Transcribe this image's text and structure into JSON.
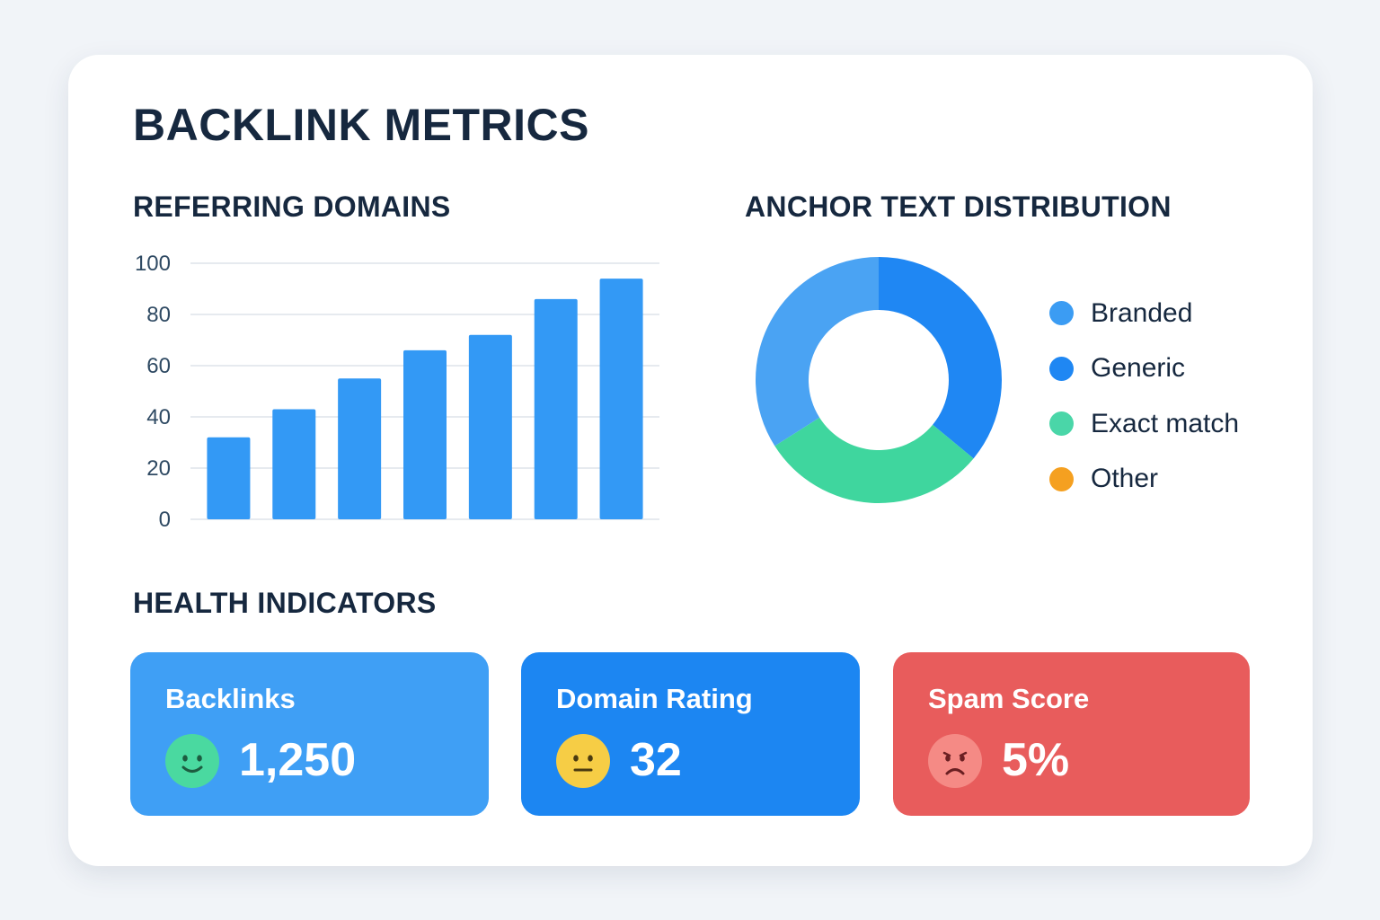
{
  "title": "BACKLINK METRICS",
  "colors": {
    "page_bg": "#f1f4f8",
    "heading": "#16283f",
    "bar": "#3399f5",
    "grid": "#dde3ea"
  },
  "referring_domains": {
    "title": "REFERRING DOMAINS",
    "chart_data": {
      "type": "bar",
      "values": [
        32,
        43,
        55,
        66,
        72,
        86,
        94
      ],
      "yticks": [
        0,
        20,
        40,
        60,
        80,
        100
      ],
      "ylim": [
        0,
        100
      ],
      "grid": true
    }
  },
  "anchor_text": {
    "title": "ANCHOR TEXT DISTRIBUTION",
    "chart_data": {
      "type": "pie",
      "donut": true,
      "slices": [
        {
          "label": "Generic",
          "value": 36,
          "color": "#1f87f3"
        },
        {
          "label": "Exact match",
          "value": 30,
          "color": "#3fd69e"
        },
        {
          "label": "Branded",
          "value": 34,
          "color": "#4aa3f3"
        },
        {
          "label": "Other",
          "value": 0,
          "color": "#f5a020"
        }
      ],
      "legend": [
        {
          "label": "Branded",
          "color": "#3b9cf3"
        },
        {
          "label": "Generic",
          "color": "#1f87f3"
        },
        {
          "label": "Exact match",
          "color": "#4ad6a8"
        },
        {
          "label": "Other",
          "color": "#f5a020"
        }
      ],
      "legend_position": "right"
    }
  },
  "health": {
    "title": "HEALTH INDICATORS",
    "indicators": [
      {
        "label": "Backlinks",
        "value": "1,250",
        "icon": "happy-face-icon",
        "bg": "#3f9ff5",
        "face": "#4ad9a0",
        "face_ink": "#1d5c40",
        "mood": "happy"
      },
      {
        "label": "Domain Rating",
        "value": "32",
        "icon": "neutral-face-icon",
        "bg": "#1c86f2",
        "face": "#f6cd45",
        "face_ink": "#4a3a10",
        "mood": "neutral"
      },
      {
        "label": "Spam Score",
        "value": "5%",
        "icon": "sad-face-icon",
        "bg": "#e85c5c",
        "face": "#f58a85",
        "face_ink": "#6a1f22",
        "mood": "sad"
      }
    ]
  }
}
